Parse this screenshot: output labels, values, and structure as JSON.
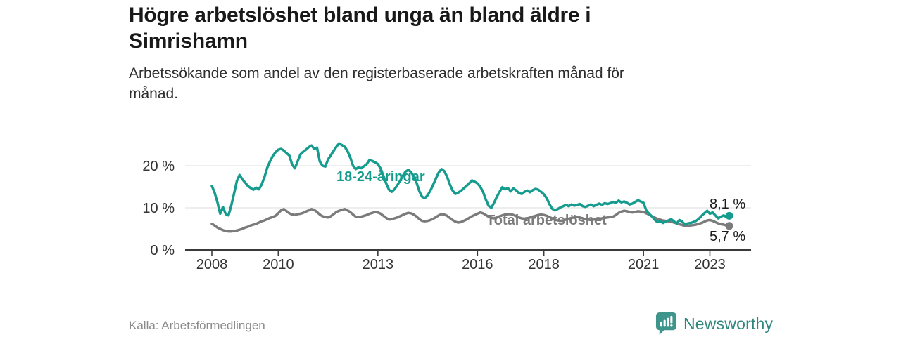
{
  "header": {
    "title": "Högre arbetslöshet bland unga än bland äldre i\nSimrishamn",
    "subtitle": "Arbetssökande som andel av den registerbaserade arbetskraften månad för\nmånad."
  },
  "footer": {
    "source": "Källa: Arbetsförmedlingen",
    "brand": "Newsworthy"
  },
  "colors": {
    "youth_line": "#169c8e",
    "total_line": "#7b7b7b",
    "grid": "#dcdcdc",
    "axis": "#3a3a3a",
    "tick_text": "#333333",
    "title_text": "#191919",
    "source_text": "#8a8a8a",
    "brand_teal": "#2f867c",
    "logo_fill": "#3f948b"
  },
  "chart_data": {
    "type": "line",
    "title": "Högre arbetslöshet bland unga än bland äldre i Simrishamn",
    "subtitle": "Arbetssökande som andel av den registerbaserade arbetskraften månad för månad.",
    "xlabel": "",
    "ylabel": "",
    "unit": "%",
    "frequency": "monthly",
    "x_start": "2008-01",
    "x_end": "2023-08",
    "ylim": [
      0,
      27
    ],
    "grid": "horizontal-only",
    "legend_position": "inline-labels",
    "yticks": [
      {
        "value": 0,
        "label": "0 %"
      },
      {
        "value": 10,
        "label": "10 %"
      },
      {
        "value": 20,
        "label": "20 %"
      }
    ],
    "xticks": [
      {
        "year": 2008,
        "label": "2008"
      },
      {
        "year": 2010,
        "label": "2010"
      },
      {
        "year": 2013,
        "label": "2013"
      },
      {
        "year": 2016,
        "label": "2016"
      },
      {
        "year": 2018,
        "label": "2018"
      },
      {
        "year": 2021,
        "label": "2021"
      },
      {
        "year": 2023,
        "label": "2023"
      }
    ],
    "series": [
      {
        "name": "18-24-åringar",
        "color": "#169c8e",
        "end_label": "8,1 %",
        "end_value": 8.1,
        "values": [
          15.2,
          13.6,
          11.3,
          8.6,
          10.2,
          8.5,
          8.2,
          10.5,
          13.3,
          16.3,
          17.8,
          16.8,
          16.0,
          15.2,
          14.7,
          14.3,
          14.8,
          14.4,
          15.5,
          17.3,
          19.5,
          21.0,
          22.3,
          23.2,
          23.8,
          24.0,
          23.6,
          23.0,
          22.4,
          20.3,
          19.4,
          21.0,
          22.7,
          23.3,
          23.8,
          24.4,
          24.8,
          24.0,
          24.3,
          21.0,
          20.0,
          19.8,
          21.5,
          22.5,
          23.5,
          24.5,
          25.3,
          24.9,
          24.5,
          23.5,
          22.0,
          20.0,
          19.2,
          19.6,
          19.4,
          19.9,
          20.4,
          21.4,
          21.1,
          20.8,
          20.4,
          19.3,
          17.6,
          15.8,
          14.3,
          13.8,
          14.4,
          15.3,
          16.4,
          17.6,
          18.6,
          19.0,
          18.5,
          17.4,
          15.9,
          13.9,
          12.6,
          12.3,
          13.0,
          14.1,
          15.5,
          17.0,
          18.4,
          19.2,
          18.7,
          17.4,
          15.6,
          14.1,
          13.3,
          13.6,
          14.0,
          14.6,
          15.2,
          15.8,
          16.5,
          16.2,
          15.8,
          15.0,
          13.8,
          12.0,
          10.5,
          10.0,
          11.2,
          12.6,
          13.8,
          14.9,
          14.4,
          14.7,
          13.9,
          14.6,
          14.1,
          13.5,
          13.3,
          13.8,
          14.1,
          13.7,
          14.2,
          14.5,
          14.3,
          13.8,
          13.2,
          12.3,
          10.9,
          9.8,
          9.4,
          9.7,
          10.1,
          10.4,
          10.7,
          10.4,
          10.8,
          10.5,
          10.7,
          10.9,
          10.4,
          10.2,
          10.5,
          10.8,
          10.4,
          10.7,
          11.0,
          10.7,
          11.1,
          10.9,
          11.1,
          11.4,
          11.2,
          11.7,
          11.3,
          11.5,
          11.2,
          10.8,
          11.0,
          11.4,
          11.8,
          11.5,
          11.2,
          9.4,
          8.6,
          8.0,
          7.2,
          6.6,
          6.9,
          6.4,
          6.7,
          7.0,
          7.3,
          6.8,
          6.3,
          7.1,
          6.7,
          6.0,
          6.3,
          6.4,
          6.6,
          6.9,
          7.4,
          8.1,
          8.7,
          9.3,
          8.6,
          8.9,
          8.2,
          7.5,
          7.9,
          8.2,
          7.8,
          8.1
        ]
      },
      {
        "name": "Total arbetslöshet",
        "color": "#7b7b7b",
        "end_label": "5,7 %",
        "end_value": 5.7,
        "values": [
          6.2,
          5.8,
          5.3,
          5.0,
          4.7,
          4.5,
          4.4,
          4.4,
          4.5,
          4.6,
          4.8,
          5.0,
          5.3,
          5.5,
          5.8,
          6.0,
          6.2,
          6.5,
          6.8,
          7.0,
          7.3,
          7.6,
          7.8,
          8.1,
          8.7,
          9.4,
          9.7,
          9.2,
          8.7,
          8.4,
          8.3,
          8.5,
          8.6,
          8.8,
          9.1,
          9.4,
          9.7,
          9.5,
          9.0,
          8.4,
          8.0,
          7.8,
          7.7,
          8.0,
          8.5,
          9.0,
          9.3,
          9.5,
          9.7,
          9.4,
          9.0,
          8.4,
          7.9,
          7.8,
          7.9,
          8.1,
          8.3,
          8.6,
          8.8,
          9.0,
          8.9,
          8.6,
          8.1,
          7.6,
          7.2,
          7.3,
          7.5,
          7.7,
          8.0,
          8.3,
          8.6,
          8.8,
          8.7,
          8.4,
          7.9,
          7.3,
          6.9,
          6.8,
          6.9,
          7.1,
          7.4,
          7.8,
          8.2,
          8.5,
          8.4,
          8.1,
          7.6,
          7.1,
          6.7,
          6.5,
          6.6,
          6.9,
          7.2,
          7.6,
          8.0,
          8.3,
          8.6,
          8.9,
          8.7,
          8.3,
          7.9,
          7.6,
          7.5,
          7.7,
          8.0,
          8.2,
          8.4,
          8.5,
          8.5,
          8.3,
          8.0,
          7.7,
          7.5,
          7.4,
          7.5,
          7.7,
          7.9,
          8.1,
          8.3,
          8.4,
          8.3,
          8.1,
          7.8,
          7.5,
          7.2,
          7.0,
          6.9,
          7.0,
          7.2,
          7.4,
          7.6,
          7.7,
          7.8,
          7.7,
          7.5,
          7.3,
          7.2,
          7.1,
          7.2,
          7.3,
          7.4,
          7.5,
          7.6,
          7.7,
          7.8,
          7.9,
          8.3,
          8.8,
          9.1,
          9.3,
          9.2,
          9.0,
          8.9,
          9.0,
          9.2,
          9.1,
          9.0,
          8.7,
          8.4,
          8.0,
          7.7,
          7.4,
          7.2,
          7.0,
          6.9,
          6.8,
          6.7,
          6.5,
          6.3,
          6.1,
          5.9,
          5.7,
          5.7,
          5.8,
          5.9,
          6.0,
          6.2,
          6.4,
          6.7,
          7.0,
          7.1,
          6.9,
          6.6,
          6.3,
          6.1,
          6.0,
          5.8,
          5.7
        ]
      }
    ]
  }
}
